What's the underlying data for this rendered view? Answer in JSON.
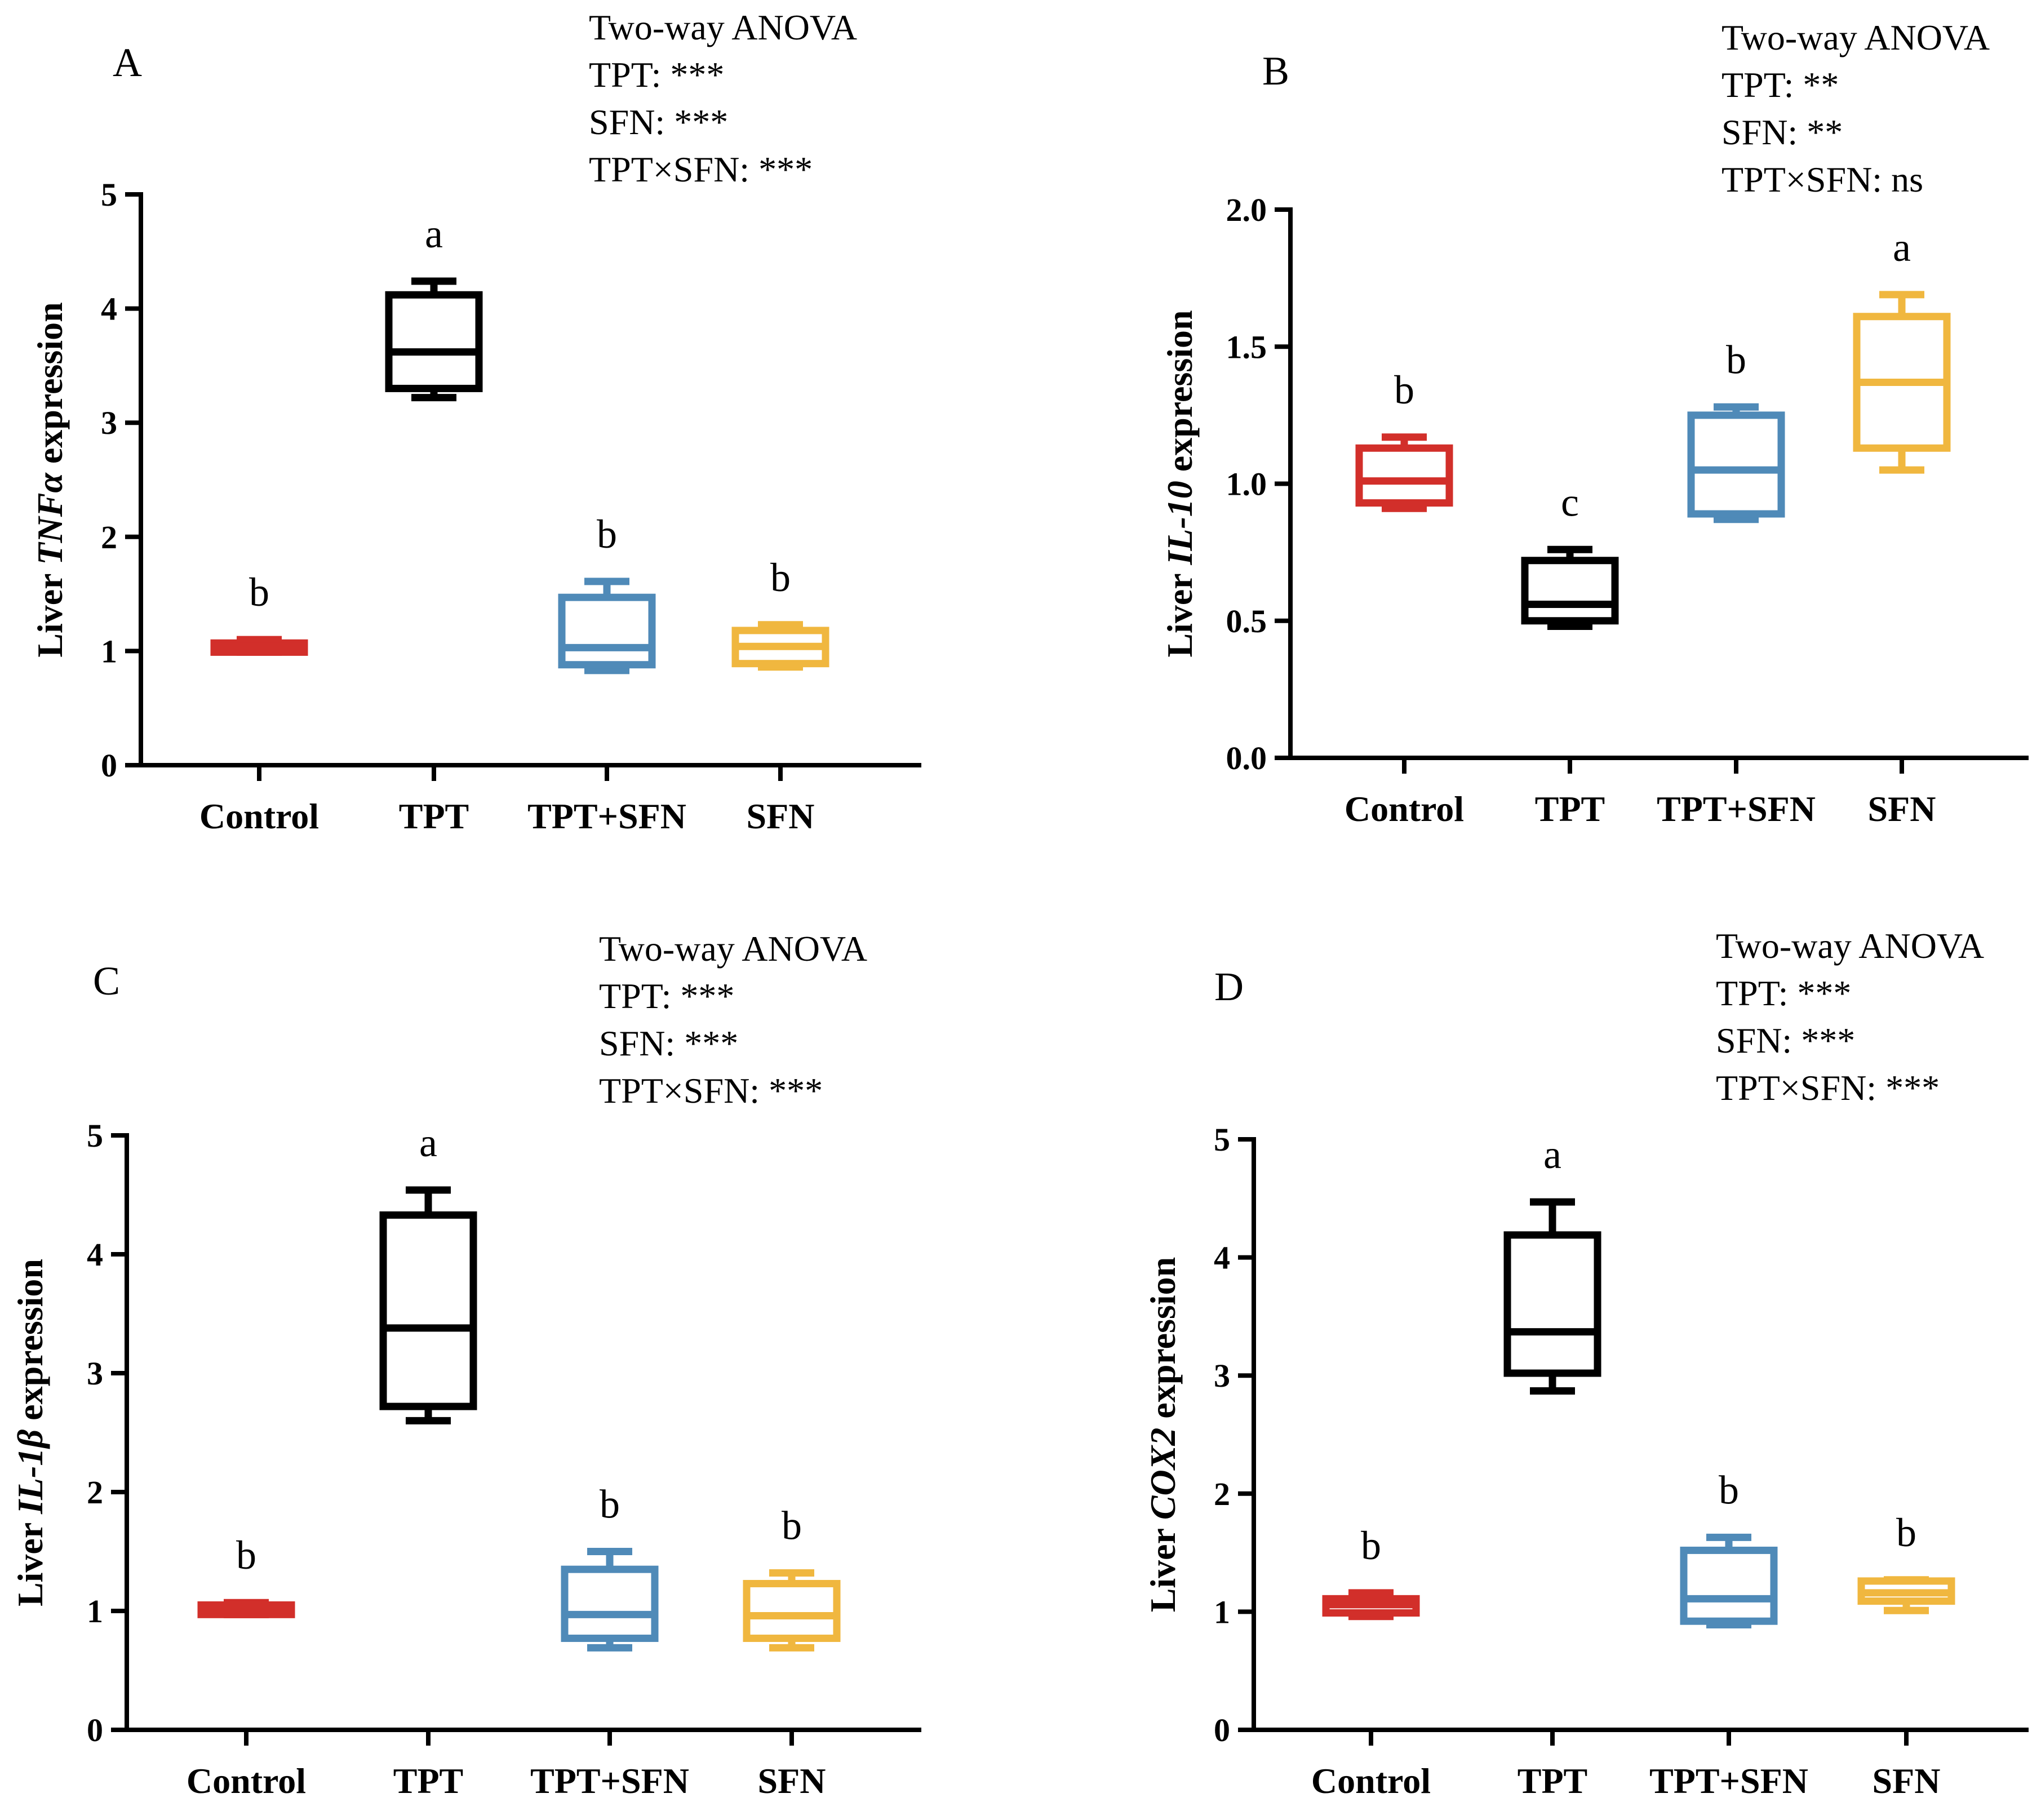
{
  "colors": {
    "Control": "#d22f2a",
    "TPT": "#000000",
    "TPT+SFN": "#4f8ab8",
    "SFN": "#f0b73f"
  },
  "chart_data": [
    {
      "type": "box",
      "panel": "A",
      "ylabel_prefix": "Liver ",
      "gene": "TNFα",
      "ylabel_suffix": " expression",
      "ylim": [
        0,
        5
      ],
      "yticks": [
        "0",
        "1",
        "2",
        "3",
        "4",
        "5"
      ],
      "categories": [
        "Control",
        "TPT",
        "TPT+SFN",
        "SFN"
      ],
      "boxes": [
        {
          "min": 0.99,
          "q1": 0.99,
          "median": 1.04,
          "q3": 1.07,
          "max": 1.1
        },
        {
          "min": 3.22,
          "q1": 3.3,
          "median": 3.62,
          "q3": 4.12,
          "max": 4.24
        },
        {
          "min": 0.83,
          "q1": 0.88,
          "median": 1.03,
          "q3": 1.47,
          "max": 1.61
        },
        {
          "min": 0.86,
          "q1": 0.89,
          "median": 1.04,
          "q3": 1.18,
          "max": 1.23
        }
      ],
      "letters": [
        "b",
        "a",
        "b",
        "b"
      ],
      "anova": [
        "Two-way ANOVA",
        "TPT: ***",
        "SFN: ***",
        "TPT×SFN: ***"
      ]
    },
    {
      "type": "box",
      "panel": "B",
      "ylabel_prefix": "Liver ",
      "gene": "IL-10",
      "ylabel_suffix": " expression",
      "ylim": [
        0,
        2
      ],
      "yticks": [
        "0.0",
        "0.5",
        "1.0",
        "1.5",
        "2.0"
      ],
      "categories": [
        "Control",
        "TPT",
        "TPT+SFN",
        "SFN"
      ],
      "boxes": [
        {
          "min": 0.91,
          "q1": 0.93,
          "median": 1.01,
          "q3": 1.13,
          "max": 1.17
        },
        {
          "min": 0.48,
          "q1": 0.5,
          "median": 0.56,
          "q3": 0.72,
          "max": 0.76
        },
        {
          "min": 0.87,
          "q1": 0.89,
          "median": 1.05,
          "q3": 1.25,
          "max": 1.28
        },
        {
          "min": 1.05,
          "q1": 1.13,
          "median": 1.37,
          "q3": 1.61,
          "max": 1.69
        }
      ],
      "letters": [
        "b",
        "c",
        "b",
        "a"
      ],
      "anova": [
        "Two-way ANOVA",
        "TPT: **",
        "SFN: **",
        "TPT×SFN: ns"
      ]
    },
    {
      "type": "box",
      "panel": "C",
      "ylabel_prefix": "Liver ",
      "gene": "IL-1β",
      "ylabel_suffix": " expression",
      "ylim": [
        0,
        5
      ],
      "yticks": [
        "0",
        "1",
        "2",
        "3",
        "4",
        "5"
      ],
      "categories": [
        "Control",
        "TPT",
        "TPT+SFN",
        "SFN"
      ],
      "boxes": [
        {
          "min": 0.97,
          "q1": 0.97,
          "median": 1.01,
          "q3": 1.05,
          "max": 1.07
        },
        {
          "min": 2.6,
          "q1": 2.72,
          "median": 3.38,
          "q3": 4.33,
          "max": 4.54
        },
        {
          "min": 0.69,
          "q1": 0.77,
          "median": 0.97,
          "q3": 1.35,
          "max": 1.5
        },
        {
          "min": 0.69,
          "q1": 0.77,
          "median": 0.96,
          "q3": 1.23,
          "max": 1.32
        }
      ],
      "letters": [
        "b",
        "a",
        "b",
        "b"
      ],
      "anova": [
        "Two-way ANOVA",
        "TPT: ***",
        "SFN: ***",
        "TPT×SFN: ***"
      ]
    },
    {
      "type": "box",
      "panel": "D",
      "ylabel_prefix": "Liver ",
      "gene": "COX2",
      "ylabel_suffix": " expression",
      "ylim": [
        0,
        5
      ],
      "yticks": [
        "0",
        "1",
        "2",
        "3",
        "4",
        "5"
      ],
      "categories": [
        "Control",
        "TPT",
        "TPT+SFN",
        "SFN"
      ],
      "boxes": [
        {
          "min": 0.96,
          "q1": 0.99,
          "median": 1.06,
          "q3": 1.11,
          "max": 1.16
        },
        {
          "min": 2.87,
          "q1": 3.02,
          "median": 3.37,
          "q3": 4.19,
          "max": 4.47
        },
        {
          "min": 0.89,
          "q1": 0.92,
          "median": 1.11,
          "q3": 1.52,
          "max": 1.63
        },
        {
          "min": 1.01,
          "q1": 1.09,
          "median": 1.16,
          "q3": 1.26,
          "max": 1.27
        }
      ],
      "letters": [
        "b",
        "a",
        "b",
        "b"
      ],
      "anova": [
        "Two-way ANOVA",
        "TPT: ***",
        "SFN: ***",
        "TPT×SFN: ***"
      ]
    }
  ]
}
